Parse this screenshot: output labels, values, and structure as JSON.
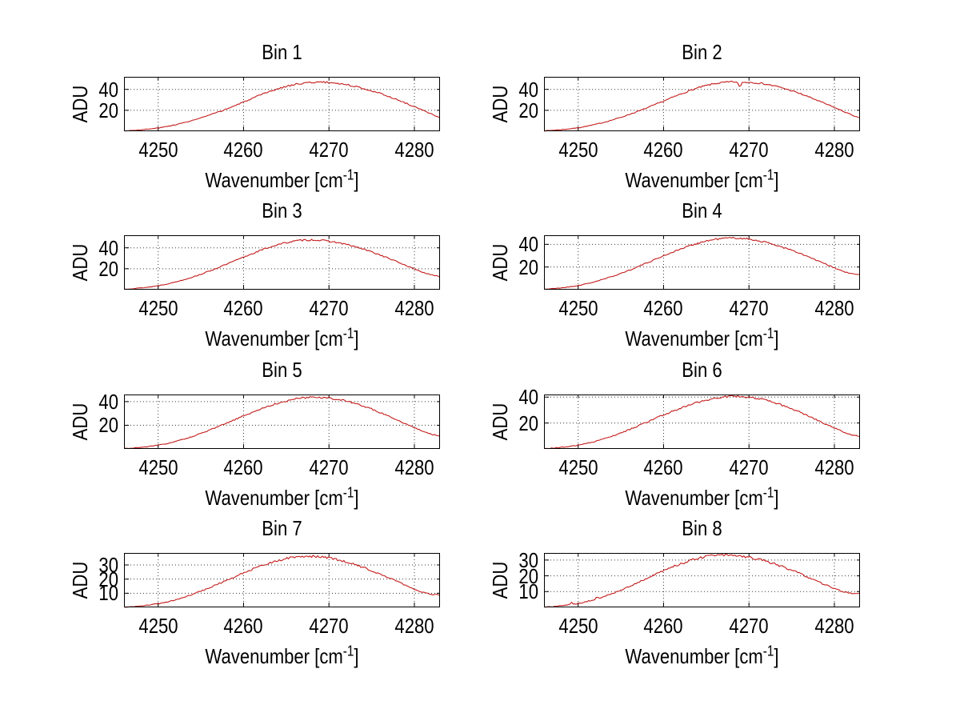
{
  "figure": {
    "background": "#ffffff",
    "axis_color": "#000000",
    "grid_color": "#3a3a3a",
    "line_color": "#c41a1a",
    "ylabel": "ADU",
    "xlabel_main": "Wavenumber [cm",
    "xlabel_sup": "-1",
    "xlabel_close": "]",
    "xlim": [
      4246,
      4283
    ],
    "xticks": [
      4250,
      4260,
      4270,
      4280
    ],
    "grid": true,
    "legend": "none",
    "noise_amplitude_adu": 0.85
  },
  "chart_data": [
    {
      "title": "Bin 1",
      "type": "line",
      "xlabel": "Wavenumber [cm^-1]",
      "ylabel": "ADU",
      "ylim": [
        0,
        52
      ],
      "yticks": [
        20,
        40
      ],
      "peak_adu": 47.0,
      "peak_wavenumber": 4269,
      "points": [
        [
          4246,
          0.4
        ],
        [
          4247,
          0.8
        ],
        [
          4248,
          1.4
        ],
        [
          4249,
          2.1
        ],
        [
          4250,
          3.1
        ],
        [
          4251,
          4.5
        ],
        [
          4252,
          6.2
        ],
        [
          4253,
          8.1
        ],
        [
          4254,
          10.3
        ],
        [
          4255,
          12.7
        ],
        [
          4256,
          15.4
        ],
        [
          4257,
          18.2
        ],
        [
          4258,
          21.2
        ],
        [
          4259,
          24.5
        ],
        [
          4260,
          27.9
        ],
        [
          4261,
          31.3
        ],
        [
          4262,
          34.6
        ],
        [
          4263,
          37.7
        ],
        [
          4264,
          40.5
        ],
        [
          4265,
          42.9
        ],
        [
          4266,
          44.8
        ],
        [
          4267,
          46.0
        ],
        [
          4268,
          46.7
        ],
        [
          4269,
          47.0
        ],
        [
          4270,
          46.6
        ],
        [
          4271,
          45.8
        ],
        [
          4272,
          44.6
        ],
        [
          4273,
          43.0
        ],
        [
          4274,
          41.0
        ],
        [
          4275,
          38.7
        ],
        [
          4276,
          36.1
        ],
        [
          4277,
          33.2
        ],
        [
          4278,
          30.1
        ],
        [
          4279,
          26.8
        ],
        [
          4280,
          23.4
        ],
        [
          4281,
          19.9
        ],
        [
          4282,
          16.4
        ],
        [
          4283,
          13.0
        ]
      ]
    },
    {
      "title": "Bin 2",
      "type": "line",
      "xlabel": "Wavenumber [cm^-1]",
      "ylabel": "ADU",
      "ylim": [
        0,
        52
      ],
      "yticks": [
        20,
        40
      ],
      "peak_adu": 47.2,
      "peak_wavenumber": 4268,
      "anomaly": "narrow absorption dip to 41.8 ADU at 4268.9",
      "points": [
        [
          4246,
          0.4
        ],
        [
          4247,
          0.9
        ],
        [
          4248,
          1.5
        ],
        [
          4249,
          2.3
        ],
        [
          4250,
          3.3
        ],
        [
          4251,
          4.8
        ],
        [
          4252,
          6.5
        ],
        [
          4253,
          8.5
        ],
        [
          4254,
          10.8
        ],
        [
          4255,
          13.3
        ],
        [
          4256,
          16.1
        ],
        [
          4257,
          19.0
        ],
        [
          4258,
          22.1
        ],
        [
          4259,
          25.4
        ],
        [
          4260,
          28.8
        ],
        [
          4261,
          32.2
        ],
        [
          4262,
          35.5
        ],
        [
          4263,
          38.6
        ],
        [
          4264,
          41.4
        ],
        [
          4265,
          43.7
        ],
        [
          4266,
          45.5
        ],
        [
          4267,
          46.6
        ],
        [
          4268,
          47.2
        ],
        [
          4268.6,
          47.0
        ],
        [
          4268.9,
          41.8
        ],
        [
          4269.2,
          46.6
        ],
        [
          4270,
          46.9
        ],
        [
          4271,
          46.2
        ],
        [
          4272,
          45.0
        ],
        [
          4273,
          43.3
        ],
        [
          4274,
          41.2
        ],
        [
          4275,
          38.7
        ],
        [
          4276,
          35.9
        ],
        [
          4277,
          32.8
        ],
        [
          4278,
          29.5
        ],
        [
          4279,
          26.1
        ],
        [
          4280,
          22.7
        ],
        [
          4281,
          19.2
        ],
        [
          4282,
          15.7
        ],
        [
          4283,
          12.3
        ]
      ]
    },
    {
      "title": "Bin 3",
      "type": "line",
      "xlabel": "Wavenumber [cm^-1]",
      "ylabel": "ADU",
      "ylim": [
        0,
        52
      ],
      "yticks": [
        20,
        40
      ],
      "peak_adu": 47.6,
      "peak_wavenumber": 4268,
      "points": [
        [
          4246,
          0.5
        ],
        [
          4247,
          1.0
        ],
        [
          4248,
          1.7
        ],
        [
          4249,
          2.6
        ],
        [
          4250,
          3.8
        ],
        [
          4251,
          5.4
        ],
        [
          4252,
          7.3
        ],
        [
          4253,
          9.5
        ],
        [
          4254,
          12.0
        ],
        [
          4255,
          14.8
        ],
        [
          4256,
          17.8
        ],
        [
          4257,
          21.0
        ],
        [
          4258,
          24.3
        ],
        [
          4259,
          27.7
        ],
        [
          4260,
          31.1
        ],
        [
          4261,
          34.4
        ],
        [
          4262,
          37.6
        ],
        [
          4263,
          40.5
        ],
        [
          4264,
          43.0
        ],
        [
          4265,
          45.0
        ],
        [
          4266,
          46.5
        ],
        [
          4267,
          47.4
        ],
        [
          4268,
          47.6
        ],
        [
          4269,
          47.2
        ],
        [
          4270,
          46.3
        ],
        [
          4271,
          45.0
        ],
        [
          4272,
          43.3
        ],
        [
          4273,
          41.2
        ],
        [
          4274,
          38.8
        ],
        [
          4275,
          36.1
        ],
        [
          4276,
          33.1
        ],
        [
          4277,
          29.9
        ],
        [
          4278,
          26.6
        ],
        [
          4279,
          23.2
        ],
        [
          4280,
          19.8
        ],
        [
          4281,
          16.6
        ],
        [
          4282,
          14.0
        ],
        [
          4283,
          12.5
        ]
      ]
    },
    {
      "title": "Bin 4",
      "type": "line",
      "xlabel": "Wavenumber [cm^-1]",
      "ylabel": "ADU",
      "ylim": [
        0,
        48
      ],
      "yticks": [
        20,
        40
      ],
      "peak_adu": 45.7,
      "peak_wavenumber": 4268,
      "points": [
        [
          4246,
          0.4
        ],
        [
          4247,
          0.9
        ],
        [
          4248,
          1.6
        ],
        [
          4249,
          2.5
        ],
        [
          4250,
          3.6
        ],
        [
          4251,
          5.2
        ],
        [
          4252,
          7.1
        ],
        [
          4253,
          9.3
        ],
        [
          4254,
          11.7
        ],
        [
          4255,
          14.4
        ],
        [
          4256,
          17.3
        ],
        [
          4257,
          20.3
        ],
        [
          4258,
          23.5
        ],
        [
          4259,
          26.7
        ],
        [
          4260,
          29.9
        ],
        [
          4261,
          33.0
        ],
        [
          4262,
          35.9
        ],
        [
          4263,
          38.6
        ],
        [
          4264,
          41.0
        ],
        [
          4265,
          42.9
        ],
        [
          4266,
          44.4
        ],
        [
          4267,
          45.3
        ],
        [
          4268,
          45.7
        ],
        [
          4269,
          45.4
        ],
        [
          4270,
          44.6
        ],
        [
          4271,
          43.4
        ],
        [
          4272,
          41.7
        ],
        [
          4273,
          39.7
        ],
        [
          4274,
          37.3
        ],
        [
          4275,
          34.7
        ],
        [
          4276,
          31.8
        ],
        [
          4277,
          28.8
        ],
        [
          4278,
          25.6
        ],
        [
          4279,
          22.4
        ],
        [
          4280,
          19.2
        ],
        [
          4281,
          16.2
        ],
        [
          4282,
          14.0
        ],
        [
          4283,
          13.2
        ]
      ]
    },
    {
      "title": "Bin 5",
      "type": "line",
      "xlabel": "Wavenumber [cm^-1]",
      "ylabel": "ADU",
      "ylim": [
        0,
        46
      ],
      "yticks": [
        20,
        40
      ],
      "peak_adu": 43.8,
      "peak_wavenumber": 4268,
      "points": [
        [
          4246,
          0.3
        ],
        [
          4247,
          0.7
        ],
        [
          4248,
          1.3
        ],
        [
          4249,
          2.1
        ],
        [
          4250,
          3.1
        ],
        [
          4251,
          4.5
        ],
        [
          4252,
          6.2
        ],
        [
          4253,
          8.2
        ],
        [
          4254,
          10.5
        ],
        [
          4255,
          13.0
        ],
        [
          4256,
          15.8
        ],
        [
          4257,
          18.7
        ],
        [
          4258,
          21.7
        ],
        [
          4259,
          24.8
        ],
        [
          4260,
          27.9
        ],
        [
          4261,
          30.9
        ],
        [
          4262,
          33.7
        ],
        [
          4263,
          36.3
        ],
        [
          4264,
          38.6
        ],
        [
          4265,
          40.6
        ],
        [
          4266,
          42.2
        ],
        [
          4267,
          43.3
        ],
        [
          4268,
          43.8
        ],
        [
          4269,
          43.7
        ],
        [
          4270,
          43.1
        ],
        [
          4271,
          42.0
        ],
        [
          4272,
          40.5
        ],
        [
          4273,
          38.6
        ],
        [
          4274,
          36.3
        ],
        [
          4275,
          33.7
        ],
        [
          4276,
          30.8
        ],
        [
          4277,
          27.7
        ],
        [
          4278,
          24.5
        ],
        [
          4279,
          21.2
        ],
        [
          4280,
          18.0
        ],
        [
          4281,
          15.0
        ],
        [
          4282,
          12.4
        ],
        [
          4283,
          11.0
        ]
      ]
    },
    {
      "title": "Bin 6",
      "type": "line",
      "xlabel": "Wavenumber [cm^-1]",
      "ylabel": "ADU",
      "ylim": [
        0,
        42
      ],
      "yticks": [
        20,
        40
      ],
      "peak_adu": 40.6,
      "peak_wavenumber": 4268,
      "points": [
        [
          4246,
          0.3
        ],
        [
          4247,
          0.7
        ],
        [
          4248,
          1.2
        ],
        [
          4249,
          1.9
        ],
        [
          4250,
          2.9
        ],
        [
          4251,
          4.2
        ],
        [
          4252,
          5.8
        ],
        [
          4253,
          7.7
        ],
        [
          4254,
          9.9
        ],
        [
          4255,
          12.3
        ],
        [
          4256,
          14.9
        ],
        [
          4257,
          17.7
        ],
        [
          4258,
          20.5
        ],
        [
          4259,
          23.4
        ],
        [
          4260,
          26.2
        ],
        [
          4261,
          28.9
        ],
        [
          4262,
          31.5
        ],
        [
          4263,
          33.9
        ],
        [
          4264,
          36.0
        ],
        [
          4265,
          37.8
        ],
        [
          4266,
          39.2
        ],
        [
          4267,
          40.2
        ],
        [
          4268,
          40.6
        ],
        [
          4269,
          40.5
        ],
        [
          4270,
          39.9
        ],
        [
          4271,
          38.9
        ],
        [
          4272,
          37.4
        ],
        [
          4273,
          35.6
        ],
        [
          4274,
          33.4
        ],
        [
          4275,
          30.9
        ],
        [
          4276,
          28.2
        ],
        [
          4277,
          25.3
        ],
        [
          4278,
          22.2
        ],
        [
          4279,
          19.1
        ],
        [
          4280,
          16.1
        ],
        [
          4281,
          13.3
        ],
        [
          4282,
          11.0
        ],
        [
          4283,
          9.8
        ]
      ]
    },
    {
      "title": "Bin 7",
      "type": "line",
      "xlabel": "Wavenumber [cm^-1]",
      "ylabel": "ADU",
      "ylim": [
        0,
        38.5
      ],
      "yticks": [
        10,
        20,
        30
      ],
      "peak_adu": 36.1,
      "peak_wavenumber": 4267,
      "points": [
        [
          4246,
          0.2
        ],
        [
          4247,
          0.5
        ],
        [
          4248,
          1.0
        ],
        [
          4249,
          1.7
        ],
        [
          4250,
          2.6
        ],
        [
          4251,
          3.8
        ],
        [
          4252,
          5.3
        ],
        [
          4253,
          7.1
        ],
        [
          4254,
          9.1
        ],
        [
          4255,
          11.4
        ],
        [
          4256,
          13.9
        ],
        [
          4257,
          16.5
        ],
        [
          4258,
          19.1
        ],
        [
          4259,
          21.8
        ],
        [
          4260,
          24.4
        ],
        [
          4261,
          26.9
        ],
        [
          4262,
          29.2
        ],
        [
          4263,
          31.3
        ],
        [
          4264,
          33.1
        ],
        [
          4265,
          34.6
        ],
        [
          4266,
          35.6
        ],
        [
          4267,
          36.1
        ],
        [
          4268,
          36.1
        ],
        [
          4269,
          35.7
        ],
        [
          4270,
          34.9
        ],
        [
          4271,
          33.7
        ],
        [
          4272,
          32.2
        ],
        [
          4273,
          30.4
        ],
        [
          4274,
          28.3
        ],
        [
          4275,
          26.0
        ],
        [
          4276,
          23.5
        ],
        [
          4277,
          20.9
        ],
        [
          4278,
          18.2
        ],
        [
          4279,
          15.5
        ],
        [
          4280,
          12.9
        ],
        [
          4281,
          10.7
        ],
        [
          4282,
          9.2
        ],
        [
          4283,
          8.7
        ]
      ]
    },
    {
      "title": "Bin 8",
      "type": "line",
      "xlabel": "Wavenumber [cm^-1]",
      "ylabel": "ADU",
      "ylim": [
        0,
        34.5
      ],
      "yticks": [
        10,
        20,
        30
      ],
      "peak_adu": 33.2,
      "peak_wavenumber": 4267,
      "anomaly": "small upward spikes near 4249.2 and 4252.2",
      "points": [
        [
          4246,
          0.2
        ],
        [
          4247,
          0.5
        ],
        [
          4248,
          1.0
        ],
        [
          4249,
          1.6
        ],
        [
          4249.2,
          3.4
        ],
        [
          4249.45,
          1.9
        ],
        [
          4250,
          2.5
        ],
        [
          4251,
          3.7
        ],
        [
          4252,
          5.1
        ],
        [
          4252.2,
          7.2
        ],
        [
          4252.45,
          5.7
        ],
        [
          4253,
          6.8
        ],
        [
          4254,
          8.7
        ],
        [
          4255,
          10.9
        ],
        [
          4256,
          13.3
        ],
        [
          4257,
          15.8
        ],
        [
          4258,
          18.3
        ],
        [
          4259,
          20.8
        ],
        [
          4260,
          23.2
        ],
        [
          4261,
          25.5
        ],
        [
          4262,
          27.6
        ],
        [
          4263,
          29.5
        ],
        [
          4264,
          31.0
        ],
        [
          4265,
          32.2
        ],
        [
          4266,
          32.9
        ],
        [
          4267,
          33.2
        ],
        [
          4268,
          33.1
        ],
        [
          4269,
          32.6
        ],
        [
          4270,
          31.8
        ],
        [
          4271,
          30.7
        ],
        [
          4272,
          29.3
        ],
        [
          4273,
          27.6
        ],
        [
          4274,
          25.7
        ],
        [
          4275,
          23.6
        ],
        [
          4276,
          21.3
        ],
        [
          4277,
          18.9
        ],
        [
          4278,
          16.5
        ],
        [
          4279,
          14.1
        ],
        [
          4280,
          11.9
        ],
        [
          4281,
          10.0
        ],
        [
          4282,
          8.8
        ],
        [
          4283,
          8.5
        ]
      ]
    }
  ]
}
